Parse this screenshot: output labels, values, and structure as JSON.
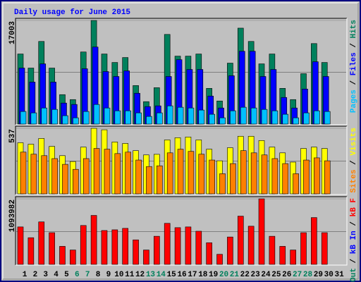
{
  "chart_data": {
    "type": "bar",
    "title": "Daily usage for June 2015",
    "categories": [
      "1",
      "2",
      "3",
      "4",
      "5",
      "6",
      "7",
      "8",
      "9",
      "10",
      "11",
      "12",
      "13",
      "14",
      "15",
      "16",
      "17",
      "18",
      "19",
      "20",
      "21",
      "22",
      "23",
      "24",
      "25",
      "26",
      "27",
      "28",
      "29",
      "30",
      "31"
    ],
    "category_colors": [
      "#000000",
      "#000000",
      "#000000",
      "#000000",
      "#000000",
      "#00805c",
      "#00805c",
      "#000000",
      "#000000",
      "#000000",
      "#000000",
      "#000000",
      "#00805c",
      "#00805c",
      "#000000",
      "#000000",
      "#000000",
      "#000000",
      "#000000",
      "#00805c",
      "#00805c",
      "#000000",
      "#000000",
      "#000000",
      "#000000",
      "#000000",
      "#00805c",
      "#00805c",
      "#000000",
      "#000000",
      "#000000"
    ],
    "legend_separator": "/",
    "panels": [
      {
        "ylim": [
          0,
          17003
        ],
        "yticks": [
          17003
        ],
        "series": [
          {
            "name": "Hits",
            "color": "#00805c",
            "values": [
              11500,
              9190,
              13560,
              9190,
              4830,
              4020,
              11830,
              17003,
              11500,
              10110,
              10920,
              6320,
              3680,
              5970,
              14710,
              11150,
              11150,
              11500,
              5860,
              3790,
              10000,
              15740,
              13560,
              9880,
              11500,
              5860,
              4020,
              8270,
              13210,
              10110,
              null
            ]
          },
          {
            "name": "Files",
            "color": "#0000ff",
            "values": [
              9190,
              6890,
              9880,
              6890,
              3450,
              3220,
              9080,
              12640,
              8620,
              7810,
              8730,
              5060,
              2870,
              2990,
              7810,
              10570,
              8960,
              8960,
              4600,
              2640,
              7930,
              11950,
              11950,
              7810,
              8960,
              4370,
              2640,
              5750,
              10230,
              7810,
              null
            ]
          },
          {
            "name": "Pages",
            "color": "#00c0ff",
            "values": [
              2070,
              1840,
              2640,
              2410,
              1380,
              1030,
              2070,
              3220,
              2640,
              2180,
              2180,
              1840,
              1260,
              1840,
              2990,
              2760,
              2640,
              2300,
              1610,
              1030,
              2180,
              2760,
              2640,
              2410,
              2180,
              1610,
              1030,
              1840,
              2180,
              2070,
              null
            ]
          }
        ]
      },
      {
        "ylim": [
          0,
          537
        ],
        "yticks": [
          537
        ],
        "series": [
          {
            "name": "Visits",
            "color": "#ffff00",
            "values": [
              419,
              407,
              454,
              389,
              313,
              265,
              383,
              537,
              525,
              425,
              413,
              354,
              319,
              324,
              442,
              460,
              466,
              442,
              366,
              271,
              378,
              472,
              472,
              437,
              383,
              336,
              260,
              372,
              383,
              372,
              null
            ]
          },
          {
            "name": "Sites",
            "color": "#ff8000",
            "values": [
              342,
              325,
              313,
              289,
              242,
              201,
              289,
              372,
              366,
              330,
              342,
              277,
              224,
              230,
              336,
              366,
              348,
              325,
              277,
              165,
              248,
              354,
              336,
              319,
              289,
              248,
              165,
              277,
              295,
              271,
              null
            ]
          }
        ]
      },
      {
        "ylim": [
          0,
          1093982
        ],
        "yticks": [
          1093982
        ],
        "series": [
          {
            "name": "kB F",
            "color": "#ff0000",
            "values": [
              625000,
              445000,
              709000,
              529000,
              301000,
              240000,
              649000,
              817000,
              565000,
              577000,
              601000,
              409000,
              240000,
              469000,
              685000,
              613000,
              625000,
              553000,
              361000,
              168000,
              457000,
              805000,
              637000,
              1093982,
              469000,
              301000,
              240000,
              529000,
              781000,
              529000,
              null
            ]
          },
          {
            "name": "kB In",
            "color": "#0000ff",
            "values": [
              null,
              null,
              null,
              null,
              null,
              null,
              null,
              null,
              null,
              null,
              null,
              null,
              null,
              null,
              null,
              null,
              null,
              null,
              null,
              null,
              null,
              null,
              null,
              null,
              null,
              null,
              null,
              null,
              null,
              null,
              null
            ]
          },
          {
            "name": "kB Out",
            "color": "#00805c",
            "values": [
              null,
              null,
              null,
              null,
              null,
              null,
              null,
              null,
              null,
              null,
              null,
              null,
              null,
              null,
              null,
              null,
              null,
              null,
              null,
              null,
              null,
              null,
              null,
              null,
              null,
              null,
              null,
              null,
              null,
              null,
              null
            ]
          }
        ]
      }
    ]
  }
}
